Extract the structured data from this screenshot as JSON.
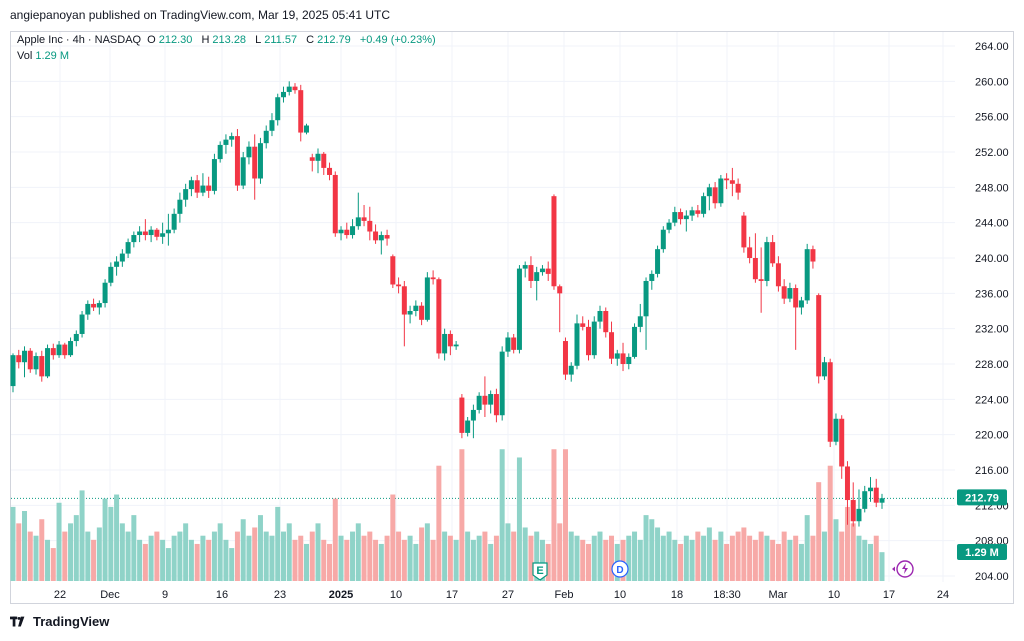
{
  "header": {
    "publisher_line": "angiepanoyan published on TradingView.com, Mar 19, 2025 05:41 UTC"
  },
  "legend": {
    "symbol": "Apple Inc · 4h · NASDAQ",
    "o_label": "O",
    "o": "212.30",
    "h_label": "H",
    "h": "213.28",
    "l_label": "L",
    "l": "211.57",
    "c_label": "C",
    "c": "212.79",
    "change": "+0.49 (+0.23%)",
    "vol_label": "Vol",
    "vol": "1.29 M"
  },
  "price_axis": {
    "ticks": [
      "264.00",
      "260.00",
      "256.00",
      "252.00",
      "248.00",
      "244.00",
      "240.00",
      "236.00",
      "232.00",
      "228.00",
      "224.00",
      "220.00",
      "216.00",
      "212.00",
      "208.00",
      "204.00"
    ],
    "last_price_label": "212.79",
    "volume_label": "1.29 M"
  },
  "time_axis": {
    "labels": [
      "22",
      "Dec",
      "9",
      "16",
      "23",
      "2025",
      "10",
      "17",
      "27",
      "Feb",
      "10",
      "18",
      "18:30",
      "Mar",
      "10",
      "17",
      "24"
    ]
  },
  "event_markers": [
    {
      "label": "E"
    },
    {
      "label": "D"
    }
  ],
  "footer": {
    "brand": "TradingView"
  },
  "colors": {
    "up": "#089981",
    "down": "#f23645",
    "vol_up": "#8fd3c8",
    "vol_down": "#f7a9a7",
    "last_price": "#089981",
    "grid": "#f0f3fa"
  },
  "chart_data": {
    "type": "candlestick",
    "title": "Apple Inc · 4h · NASDAQ",
    "ylim": [
      204,
      264.5
    ],
    "timeframe": "4h",
    "candles": [
      {
        "o": 225.5,
        "h": 229.2,
        "l": 224.8,
        "c": 229.0,
        "v": 0.9
      },
      {
        "o": 229.0,
        "h": 229.6,
        "l": 227.5,
        "c": 228.2,
        "v": 0.7
      },
      {
        "o": 228.2,
        "h": 230.0,
        "l": 226.5,
        "c": 229.5,
        "v": 0.85
      },
      {
        "o": 229.5,
        "h": 229.8,
        "l": 227.0,
        "c": 227.4,
        "v": 0.6
      },
      {
        "o": 227.4,
        "h": 229.3,
        "l": 226.8,
        "c": 228.9,
        "v": 0.55
      },
      {
        "o": 228.9,
        "h": 229.5,
        "l": 226.0,
        "c": 226.6,
        "v": 0.75
      },
      {
        "o": 226.6,
        "h": 230.2,
        "l": 226.4,
        "c": 229.8,
        "v": 0.5
      },
      {
        "o": 229.8,
        "h": 230.3,
        "l": 228.5,
        "c": 229.0,
        "v": 0.4
      },
      {
        "o": 229.0,
        "h": 230.6,
        "l": 228.7,
        "c": 230.2,
        "v": 0.95
      },
      {
        "o": 230.2,
        "h": 230.4,
        "l": 228.6,
        "c": 229.0,
        "v": 0.6
      },
      {
        "o": 229.0,
        "h": 231.0,
        "l": 228.8,
        "c": 230.6,
        "v": 0.7
      },
      {
        "o": 230.6,
        "h": 231.8,
        "l": 230.0,
        "c": 231.4,
        "v": 0.8
      },
      {
        "o": 231.4,
        "h": 234.0,
        "l": 231.0,
        "c": 233.6,
        "v": 1.1
      },
      {
        "o": 233.6,
        "h": 235.2,
        "l": 233.0,
        "c": 234.8,
        "v": 0.6
      },
      {
        "o": 234.8,
        "h": 235.4,
        "l": 234.0,
        "c": 234.4,
        "v": 0.5
      },
      {
        "o": 234.4,
        "h": 235.2,
        "l": 233.6,
        "c": 234.9,
        "v": 0.65
      },
      {
        "o": 234.9,
        "h": 237.6,
        "l": 234.4,
        "c": 237.2,
        "v": 1.0
      },
      {
        "o": 237.2,
        "h": 239.5,
        "l": 236.8,
        "c": 239.0,
        "v": 0.9
      },
      {
        "o": 239.0,
        "h": 240.2,
        "l": 238.0,
        "c": 239.6,
        "v": 1.05
      },
      {
        "o": 239.6,
        "h": 241.0,
        "l": 239.0,
        "c": 240.5,
        "v": 0.7
      },
      {
        "o": 240.5,
        "h": 242.2,
        "l": 240.0,
        "c": 241.8,
        "v": 0.6
      },
      {
        "o": 241.8,
        "h": 243.0,
        "l": 241.2,
        "c": 242.6,
        "v": 0.8
      },
      {
        "o": 242.6,
        "h": 243.6,
        "l": 241.8,
        "c": 243.0,
        "v": 0.5
      },
      {
        "o": 243.0,
        "h": 244.4,
        "l": 242.0,
        "c": 242.6,
        "v": 0.45
      },
      {
        "o": 242.6,
        "h": 243.6,
        "l": 241.8,
        "c": 243.2,
        "v": 0.55
      },
      {
        "o": 243.2,
        "h": 243.4,
        "l": 242.0,
        "c": 242.4,
        "v": 0.6
      },
      {
        "o": 242.4,
        "h": 244.0,
        "l": 241.6,
        "c": 242.8,
        "v": 0.5
      },
      {
        "o": 242.8,
        "h": 245.0,
        "l": 241.4,
        "c": 243.2,
        "v": 0.4
      },
      {
        "o": 243.2,
        "h": 245.6,
        "l": 242.8,
        "c": 245.0,
        "v": 0.55
      },
      {
        "o": 245.0,
        "h": 247.4,
        "l": 244.0,
        "c": 246.6,
        "v": 0.6
      },
      {
        "o": 246.6,
        "h": 248.4,
        "l": 245.8,
        "c": 247.8,
        "v": 0.7
      },
      {
        "o": 247.8,
        "h": 249.2,
        "l": 247.0,
        "c": 248.8,
        "v": 0.5
      },
      {
        "o": 248.8,
        "h": 249.4,
        "l": 246.8,
        "c": 247.4,
        "v": 0.45
      },
      {
        "o": 247.4,
        "h": 249.6,
        "l": 247.0,
        "c": 248.2,
        "v": 0.55
      },
      {
        "o": 248.2,
        "h": 249.2,
        "l": 246.8,
        "c": 247.6,
        "v": 0.5
      },
      {
        "o": 247.6,
        "h": 251.8,
        "l": 247.2,
        "c": 251.2,
        "v": 0.6
      },
      {
        "o": 251.2,
        "h": 253.2,
        "l": 250.8,
        "c": 252.8,
        "v": 0.7
      },
      {
        "o": 252.8,
        "h": 254.0,
        "l": 251.8,
        "c": 253.4,
        "v": 0.5
      },
      {
        "o": 253.4,
        "h": 254.2,
        "l": 252.6,
        "c": 253.8,
        "v": 0.4
      },
      {
        "o": 253.8,
        "h": 254.6,
        "l": 247.6,
        "c": 248.2,
        "v": 0.6
      },
      {
        "o": 248.2,
        "h": 252.0,
        "l": 247.8,
        "c": 251.4,
        "v": 0.75
      },
      {
        "o": 251.4,
        "h": 253.2,
        "l": 250.6,
        "c": 252.6,
        "v": 0.55
      },
      {
        "o": 252.6,
        "h": 254.0,
        "l": 246.6,
        "c": 249.0,
        "v": 0.65
      },
      {
        "o": 249.0,
        "h": 253.6,
        "l": 248.4,
        "c": 253.0,
        "v": 0.8
      },
      {
        "o": 253.0,
        "h": 255.0,
        "l": 252.4,
        "c": 254.4,
        "v": 0.6
      },
      {
        "o": 254.4,
        "h": 256.4,
        "l": 253.8,
        "c": 255.6,
        "v": 0.55
      },
      {
        "o": 255.6,
        "h": 258.6,
        "l": 255.0,
        "c": 258.2,
        "v": 0.9
      },
      {
        "o": 258.2,
        "h": 259.4,
        "l": 257.6,
        "c": 258.8,
        "v": 0.6
      },
      {
        "o": 258.8,
        "h": 260.0,
        "l": 258.4,
        "c": 259.4,
        "v": 0.7
      },
      {
        "o": 259.4,
        "h": 259.8,
        "l": 258.6,
        "c": 259.0,
        "v": 0.5
      },
      {
        "o": 259.0,
        "h": 259.6,
        "l": 253.2,
        "c": 254.2,
        "v": 0.55
      },
      {
        "o": 254.2,
        "h": 255.2,
        "l": 254.0,
        "c": 255.0,
        "v": 0.45
      },
      {
        "o": 251.4,
        "h": 251.8,
        "l": 249.8,
        "c": 251.0,
        "v": 0.6
      },
      {
        "o": 251.0,
        "h": 252.4,
        "l": 249.6,
        "c": 251.8,
        "v": 0.7
      },
      {
        "o": 251.8,
        "h": 252.0,
        "l": 249.4,
        "c": 250.2,
        "v": 0.5
      },
      {
        "o": 250.2,
        "h": 250.8,
        "l": 248.8,
        "c": 249.4,
        "v": 0.45
      },
      {
        "o": 249.4,
        "h": 249.8,
        "l": 242.4,
        "c": 242.8,
        "v": 1.0
      },
      {
        "o": 242.8,
        "h": 243.6,
        "l": 242.0,
        "c": 243.2,
        "v": 0.55
      },
      {
        "o": 243.2,
        "h": 244.0,
        "l": 242.2,
        "c": 242.6,
        "v": 0.5
      },
      {
        "o": 242.6,
        "h": 244.4,
        "l": 242.2,
        "c": 243.6,
        "v": 0.6
      },
      {
        "o": 243.6,
        "h": 247.4,
        "l": 243.2,
        "c": 244.6,
        "v": 0.7
      },
      {
        "o": 244.6,
        "h": 246.0,
        "l": 243.6,
        "c": 244.2,
        "v": 0.55
      },
      {
        "o": 244.2,
        "h": 245.8,
        "l": 242.0,
        "c": 243.0,
        "v": 0.6
      },
      {
        "o": 243.0,
        "h": 243.8,
        "l": 241.6,
        "c": 242.0,
        "v": 0.5
      },
      {
        "o": 242.0,
        "h": 243.0,
        "l": 240.4,
        "c": 242.6,
        "v": 0.45
      },
      {
        "o": 242.6,
        "h": 243.2,
        "l": 241.4,
        "c": 242.2,
        "v": 0.55
      },
      {
        "o": 240.2,
        "h": 240.4,
        "l": 236.6,
        "c": 237.0,
        "v": 1.05
      },
      {
        "o": 237.0,
        "h": 237.8,
        "l": 236.0,
        "c": 236.8,
        "v": 0.6
      },
      {
        "o": 236.8,
        "h": 237.4,
        "l": 230.0,
        "c": 233.6,
        "v": 0.5
      },
      {
        "o": 233.6,
        "h": 234.6,
        "l": 232.6,
        "c": 234.0,
        "v": 0.55
      },
      {
        "o": 234.0,
        "h": 235.2,
        "l": 233.4,
        "c": 234.6,
        "v": 0.45
      },
      {
        "o": 234.6,
        "h": 235.0,
        "l": 232.4,
        "c": 233.0,
        "v": 0.65
      },
      {
        "o": 233.0,
        "h": 238.4,
        "l": 232.8,
        "c": 237.8,
        "v": 0.7
      },
      {
        "o": 237.8,
        "h": 238.6,
        "l": 237.0,
        "c": 237.6,
        "v": 0.5
      },
      {
        "o": 237.6,
        "h": 237.8,
        "l": 228.6,
        "c": 229.2,
        "v": 1.4
      },
      {
        "o": 229.2,
        "h": 232.0,
        "l": 228.4,
        "c": 231.4,
        "v": 0.6
      },
      {
        "o": 231.4,
        "h": 231.8,
        "l": 229.0,
        "c": 230.0,
        "v": 0.55
      },
      {
        "o": 230.0,
        "h": 230.6,
        "l": 229.6,
        "c": 230.2,
        "v": 0.5
      },
      {
        "o": 224.2,
        "h": 224.6,
        "l": 219.6,
        "c": 220.2,
        "v": 1.6
      },
      {
        "o": 220.2,
        "h": 222.0,
        "l": 219.8,
        "c": 221.6,
        "v": 0.6
      },
      {
        "o": 221.6,
        "h": 223.4,
        "l": 219.6,
        "c": 222.8,
        "v": 0.5
      },
      {
        "o": 222.8,
        "h": 224.8,
        "l": 222.4,
        "c": 224.4,
        "v": 0.55
      },
      {
        "o": 224.4,
        "h": 226.6,
        "l": 222.0,
        "c": 223.4,
        "v": 0.6
      },
      {
        "o": 223.4,
        "h": 225.0,
        "l": 222.4,
        "c": 224.6,
        "v": 0.45
      },
      {
        "o": 224.6,
        "h": 225.2,
        "l": 221.4,
        "c": 222.2,
        "v": 0.55
      },
      {
        "o": 222.2,
        "h": 230.0,
        "l": 221.6,
        "c": 229.4,
        "v": 1.6
      },
      {
        "o": 229.4,
        "h": 231.6,
        "l": 228.8,
        "c": 231.0,
        "v": 0.7
      },
      {
        "o": 231.0,
        "h": 231.4,
        "l": 229.2,
        "c": 229.6,
        "v": 0.6
      },
      {
        "o": 229.6,
        "h": 239.2,
        "l": 229.2,
        "c": 238.8,
        "v": 1.5
      },
      {
        "o": 238.8,
        "h": 239.6,
        "l": 237.8,
        "c": 239.2,
        "v": 0.65
      },
      {
        "o": 239.2,
        "h": 240.2,
        "l": 236.6,
        "c": 237.4,
        "v": 0.55
      },
      {
        "o": 237.4,
        "h": 239.0,
        "l": 235.2,
        "c": 238.4,
        "v": 0.6
      },
      {
        "o": 238.4,
        "h": 239.2,
        "l": 238.0,
        "c": 238.8,
        "v": 0.5
      },
      {
        "o": 238.8,
        "h": 239.6,
        "l": 237.4,
        "c": 238.2,
        "v": 0.45
      },
      {
        "o": 247.0,
        "h": 247.2,
        "l": 236.4,
        "c": 236.8,
        "v": 1.6
      },
      {
        "o": 236.8,
        "h": 237.0,
        "l": 231.6,
        "c": 236.0,
        "v": 0.7
      },
      {
        "o": 230.6,
        "h": 231.0,
        "l": 226.2,
        "c": 226.8,
        "v": 1.6
      },
      {
        "o": 226.8,
        "h": 228.2,
        "l": 226.0,
        "c": 227.8,
        "v": 0.6
      },
      {
        "o": 227.8,
        "h": 233.6,
        "l": 227.4,
        "c": 232.6,
        "v": 0.55
      },
      {
        "o": 232.6,
        "h": 233.4,
        "l": 231.8,
        "c": 232.2,
        "v": 0.5
      },
      {
        "o": 232.2,
        "h": 233.0,
        "l": 228.4,
        "c": 229.0,
        "v": 0.45
      },
      {
        "o": 229.0,
        "h": 233.4,
        "l": 228.6,
        "c": 232.8,
        "v": 0.55
      },
      {
        "o": 232.8,
        "h": 234.6,
        "l": 232.0,
        "c": 234.0,
        "v": 0.6
      },
      {
        "o": 234.0,
        "h": 234.4,
        "l": 231.0,
        "c": 231.6,
        "v": 0.5
      },
      {
        "o": 231.6,
        "h": 232.8,
        "l": 228.0,
        "c": 228.6,
        "v": 0.55
      },
      {
        "o": 228.6,
        "h": 229.6,
        "l": 227.8,
        "c": 229.2,
        "v": 0.45
      },
      {
        "o": 229.2,
        "h": 230.4,
        "l": 227.2,
        "c": 228.0,
        "v": 0.5
      },
      {
        "o": 228.0,
        "h": 229.2,
        "l": 227.4,
        "c": 228.8,
        "v": 0.55
      },
      {
        "o": 228.8,
        "h": 232.6,
        "l": 228.6,
        "c": 232.2,
        "v": 0.6
      },
      {
        "o": 232.2,
        "h": 234.8,
        "l": 231.6,
        "c": 233.4,
        "v": 0.5
      },
      {
        "o": 233.4,
        "h": 237.8,
        "l": 229.6,
        "c": 237.4,
        "v": 0.8
      },
      {
        "o": 237.4,
        "h": 238.6,
        "l": 236.4,
        "c": 238.2,
        "v": 0.75
      },
      {
        "o": 238.2,
        "h": 241.4,
        "l": 237.8,
        "c": 241.0,
        "v": 0.65
      },
      {
        "o": 241.0,
        "h": 243.6,
        "l": 240.6,
        "c": 243.2,
        "v": 0.55
      },
      {
        "o": 243.2,
        "h": 244.4,
        "l": 242.8,
        "c": 244.0,
        "v": 0.6
      },
      {
        "o": 244.0,
        "h": 245.8,
        "l": 243.6,
        "c": 245.2,
        "v": 0.5
      },
      {
        "o": 245.2,
        "h": 245.6,
        "l": 243.8,
        "c": 244.4,
        "v": 0.45
      },
      {
        "o": 244.4,
        "h": 245.4,
        "l": 243.0,
        "c": 244.8,
        "v": 0.55
      },
      {
        "o": 244.8,
        "h": 245.8,
        "l": 244.2,
        "c": 245.4,
        "v": 0.5
      },
      {
        "o": 245.4,
        "h": 246.0,
        "l": 244.6,
        "c": 245.0,
        "v": 0.6
      },
      {
        "o": 245.0,
        "h": 247.4,
        "l": 244.6,
        "c": 247.0,
        "v": 0.55
      },
      {
        "o": 247.0,
        "h": 248.4,
        "l": 245.4,
        "c": 248.0,
        "v": 0.65
      },
      {
        "o": 248.0,
        "h": 248.6,
        "l": 245.6,
        "c": 246.2,
        "v": 0.5
      },
      {
        "o": 246.2,
        "h": 249.4,
        "l": 245.8,
        "c": 249.0,
        "v": 0.6
      },
      {
        "o": 249.0,
        "h": 249.6,
        "l": 247.8,
        "c": 248.8,
        "v": 0.45
      },
      {
        "o": 248.8,
        "h": 250.2,
        "l": 247.0,
        "c": 248.4,
        "v": 0.55
      },
      {
        "o": 248.4,
        "h": 249.0,
        "l": 246.6,
        "c": 247.4,
        "v": 0.6
      },
      {
        "o": 244.8,
        "h": 245.2,
        "l": 240.6,
        "c": 241.2,
        "v": 0.65
      },
      {
        "o": 241.2,
        "h": 242.4,
        "l": 239.4,
        "c": 240.0,
        "v": 0.55
      },
      {
        "o": 240.0,
        "h": 242.8,
        "l": 237.2,
        "c": 237.6,
        "v": 0.5
      },
      {
        "o": 237.6,
        "h": 241.2,
        "l": 233.8,
        "c": 237.4,
        "v": 0.6
      },
      {
        "o": 237.4,
        "h": 242.4,
        "l": 236.8,
        "c": 241.8,
        "v": 0.55
      },
      {
        "o": 241.8,
        "h": 242.6,
        "l": 239.0,
        "c": 239.4,
        "v": 0.5
      },
      {
        "o": 239.4,
        "h": 240.2,
        "l": 236.2,
        "c": 236.8,
        "v": 0.45
      },
      {
        "o": 236.8,
        "h": 237.6,
        "l": 234.8,
        "c": 235.4,
        "v": 0.6
      },
      {
        "o": 235.4,
        "h": 237.2,
        "l": 235.0,
        "c": 236.6,
        "v": 0.5
      },
      {
        "o": 236.6,
        "h": 237.0,
        "l": 229.6,
        "c": 234.4,
        "v": 0.55
      },
      {
        "o": 234.4,
        "h": 235.6,
        "l": 233.6,
        "c": 235.2,
        "v": 0.45
      },
      {
        "o": 235.2,
        "h": 241.6,
        "l": 234.8,
        "c": 241.0,
        "v": 0.8
      },
      {
        "o": 241.0,
        "h": 241.4,
        "l": 238.8,
        "c": 239.6,
        "v": 0.55
      },
      {
        "o": 235.8,
        "h": 236.0,
        "l": 225.8,
        "c": 226.6,
        "v": 1.2
      },
      {
        "o": 226.6,
        "h": 228.8,
        "l": 226.2,
        "c": 228.2,
        "v": 0.6
      },
      {
        "o": 228.2,
        "h": 228.6,
        "l": 218.6,
        "c": 219.2,
        "v": 1.4
      },
      {
        "o": 219.2,
        "h": 222.4,
        "l": 218.8,
        "c": 221.8,
        "v": 0.75
      },
      {
        "o": 221.8,
        "h": 222.2,
        "l": 215.0,
        "c": 216.4,
        "v": 0.6
      },
      {
        "o": 216.4,
        "h": 217.0,
        "l": 209.8,
        "c": 212.6,
        "v": 0.9
      },
      {
        "o": 212.6,
        "h": 214.6,
        "l": 209.6,
        "c": 210.2,
        "v": 0.7
      },
      {
        "o": 210.2,
        "h": 213.8,
        "l": 209.6,
        "c": 211.6,
        "v": 0.55
      },
      {
        "o": 211.6,
        "h": 214.2,
        "l": 211.2,
        "c": 213.6,
        "v": 0.5
      },
      {
        "o": 213.6,
        "h": 215.2,
        "l": 212.4,
        "c": 214.0,
        "v": 0.45
      },
      {
        "o": 214.0,
        "h": 215.0,
        "l": 211.8,
        "c": 212.3,
        "v": 0.55
      },
      {
        "o": 212.3,
        "h": 213.3,
        "l": 211.6,
        "c": 212.8,
        "v": 0.35
      }
    ]
  }
}
